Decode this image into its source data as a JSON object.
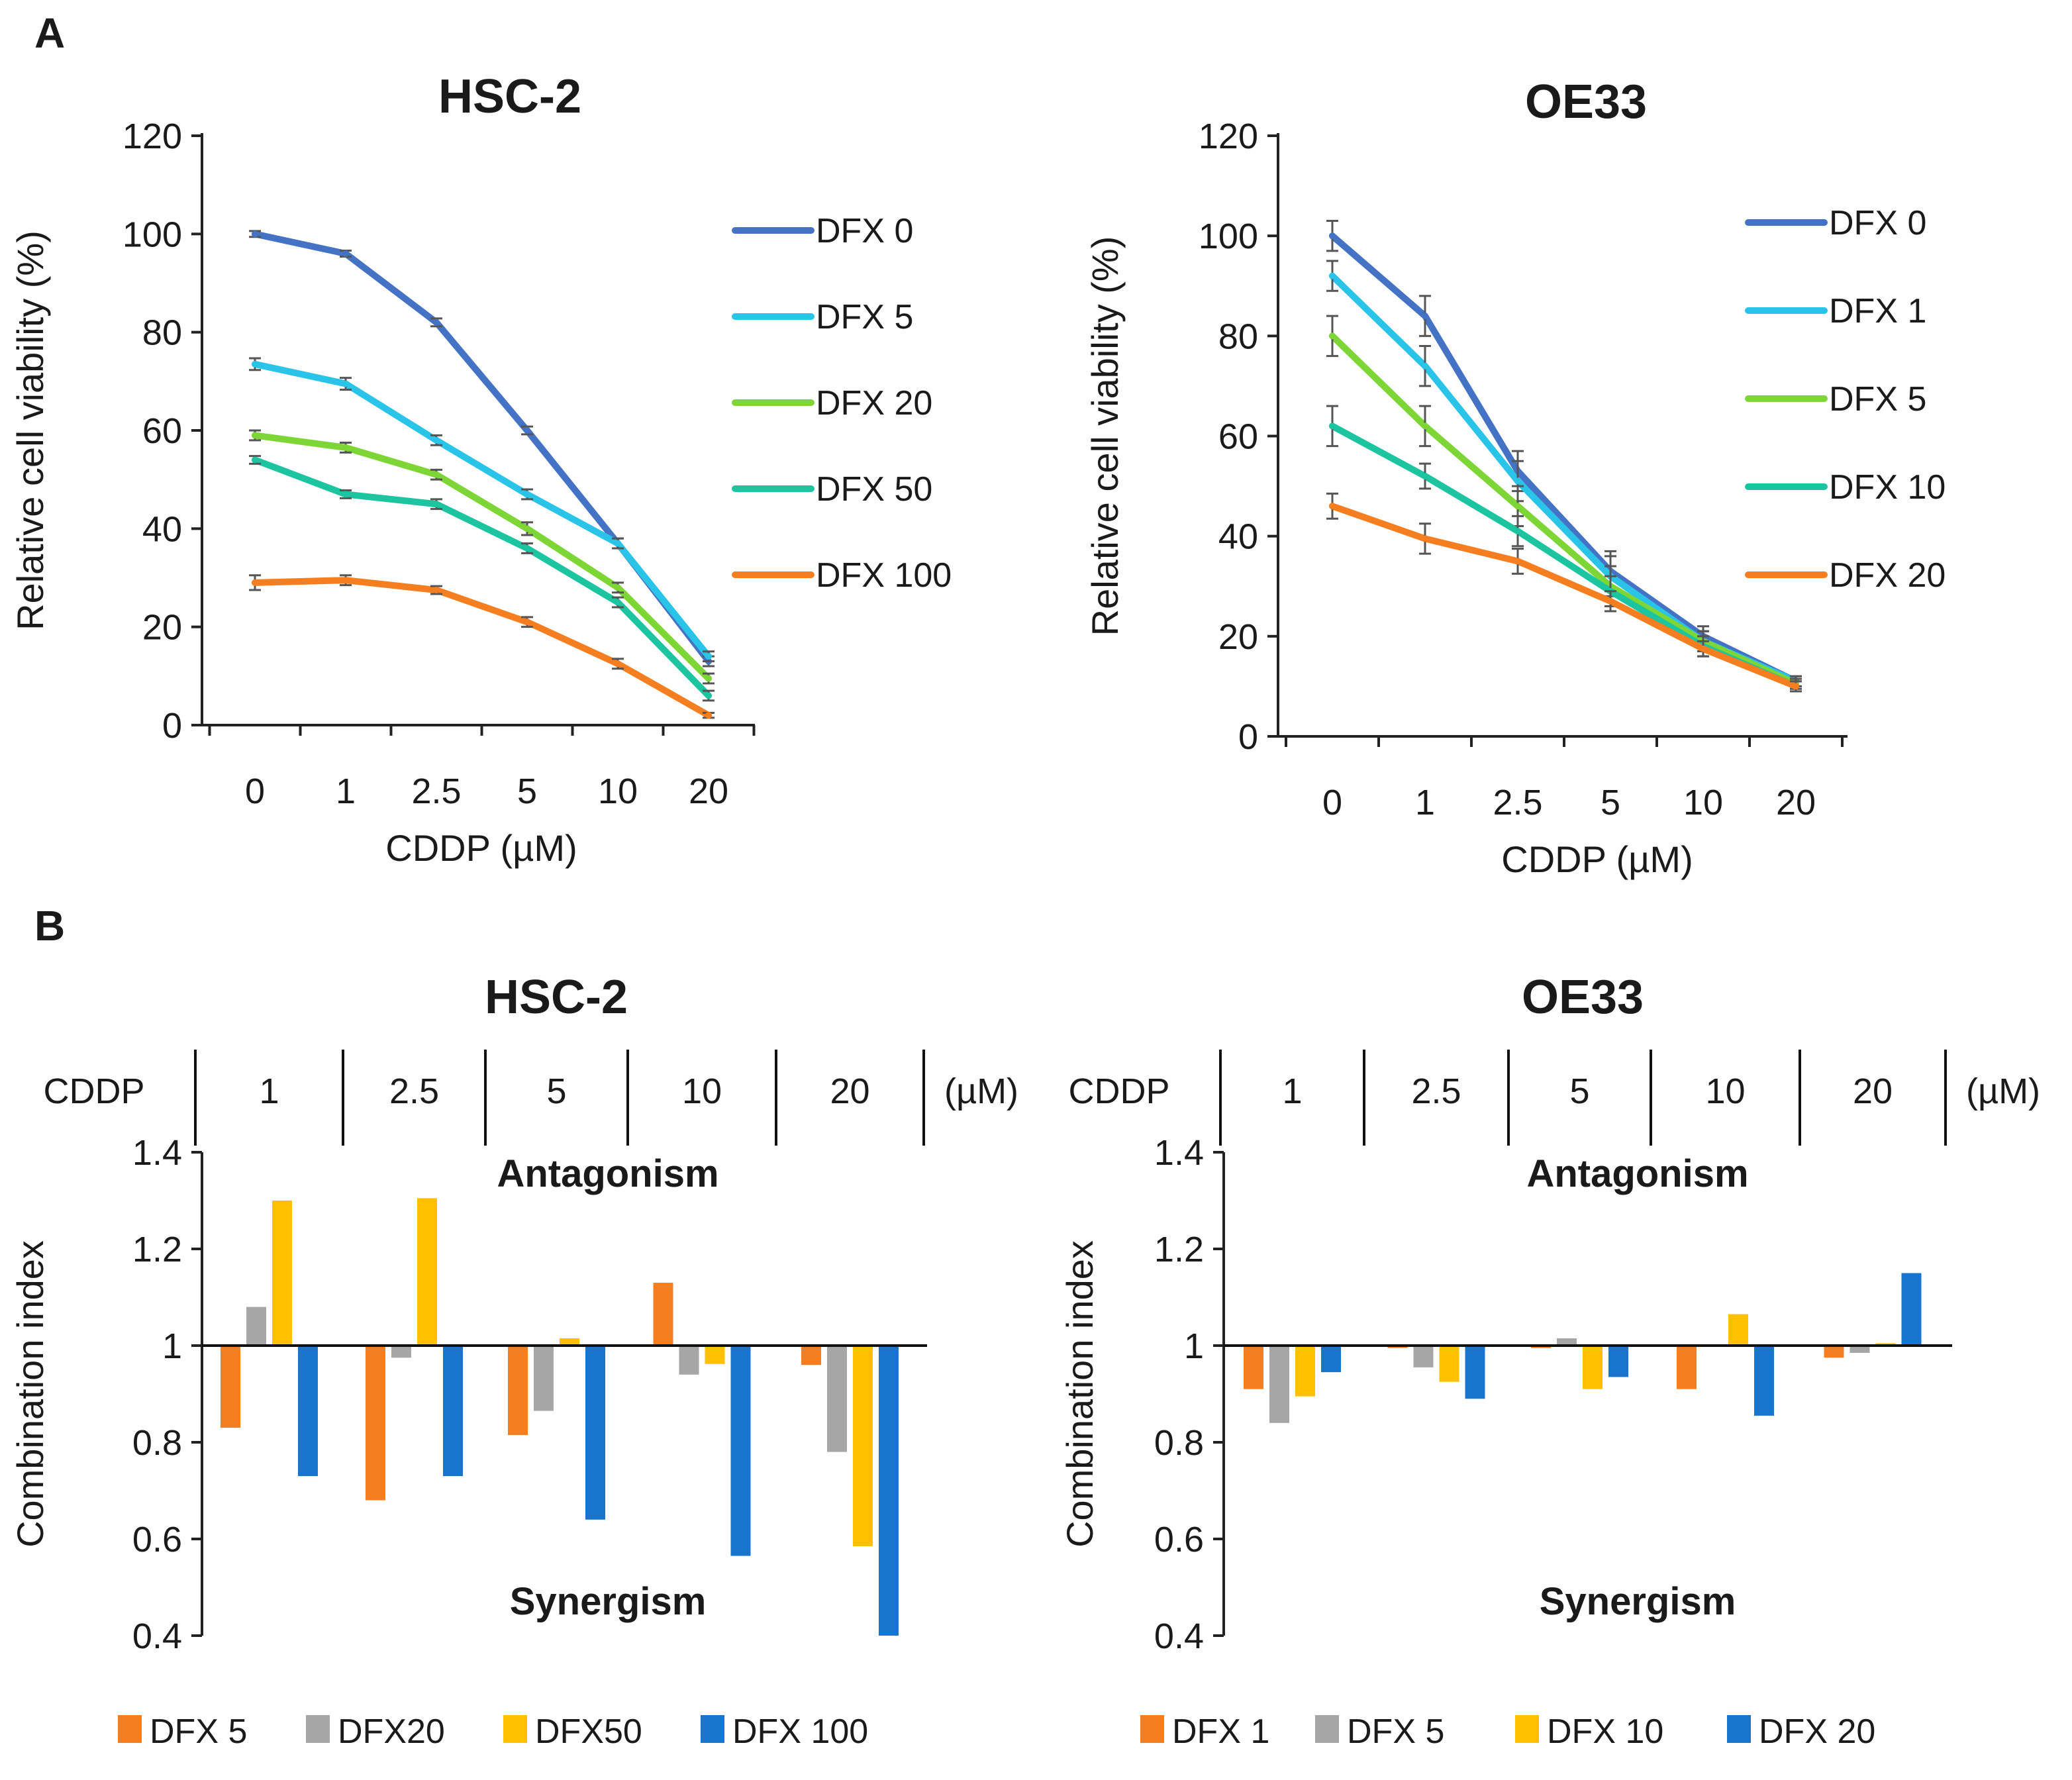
{
  "panels": {
    "A": "A",
    "B": "B"
  },
  "chart_data": [
    {
      "type": "line",
      "id": "A-HSC2",
      "title": "HSC-2",
      "xlabel": "CDDP (µM)",
      "ylabel": "Relative cell viability (%)",
      "categories": [
        "0",
        "1",
        "2.5",
        "5",
        "10",
        "20"
      ],
      "ylim": [
        0,
        120
      ],
      "yticks": [
        "0",
        "20",
        "40",
        "60",
        "80",
        "100",
        "120"
      ],
      "series": [
        {
          "name": "DFX 0",
          "color": "#4472C4",
          "values": [
            100,
            96,
            82,
            60,
            37,
            13
          ],
          "err": [
            0.6,
            0.6,
            0.8,
            0.8,
            1,
            1
          ]
        },
        {
          "name": "DFX 5",
          "color": "#29C4E8",
          "values": [
            73.5,
            69.5,
            58,
            47,
            37,
            14
          ],
          "err": [
            1.2,
            1.2,
            1,
            1,
            1,
            1
          ]
        },
        {
          "name": "DFX 20",
          "color": "#7ED636",
          "values": [
            59,
            56.5,
            51,
            40,
            28,
            9.5
          ],
          "err": [
            1,
            1,
            1,
            1.3,
            1,
            1
          ]
        },
        {
          "name": "DFX 50",
          "color": "#1CC4A0",
          "values": [
            54,
            47,
            45,
            36,
            25,
            6
          ],
          "err": [
            0.8,
            0.8,
            1,
            1,
            1,
            1
          ]
        },
        {
          "name": "DFX 100",
          "color": "#F57F20",
          "values": [
            29,
            29.5,
            27.5,
            21,
            12.5,
            2
          ],
          "err": [
            1.5,
            1,
            0.8,
            1,
            1,
            0.5
          ]
        }
      ]
    },
    {
      "type": "line",
      "id": "A-OE33",
      "title": "OE33",
      "xlabel": "CDDP (µM)",
      "ylabel": "Relative cell viability (%)",
      "categories": [
        "0",
        "1",
        "2.5",
        "5",
        "10",
        "20"
      ],
      "ylim": [
        0,
        120
      ],
      "yticks": [
        "0",
        "20",
        "40",
        "60",
        "80",
        "100",
        "120"
      ],
      "series": [
        {
          "name": "DFX 0",
          "color": "#4472C4",
          "values": [
            100,
            84,
            53,
            33,
            20,
            11
          ],
          "err": [
            3,
            4,
            4,
            4,
            2,
            1
          ]
        },
        {
          "name": "DFX 1",
          "color": "#29C4E8",
          "values": [
            92,
            74,
            51,
            32,
            19,
            11
          ],
          "err": [
            3,
            4,
            4,
            4,
            2,
            1
          ]
        },
        {
          "name": "DFX 5",
          "color": "#7ED636",
          "values": [
            80,
            62,
            46,
            30,
            19,
            10.5
          ],
          "err": [
            4,
            4,
            4,
            4,
            2,
            1
          ]
        },
        {
          "name": "DFX 10",
          "color": "#1CC4A0",
          "values": [
            62,
            52,
            41,
            29,
            18,
            10
          ],
          "err": [
            4,
            2.5,
            3,
            3,
            2,
            1
          ]
        },
        {
          "name": "DFX 20",
          "color": "#F57F20",
          "values": [
            46,
            39.5,
            35,
            27,
            17.5,
            10
          ],
          "err": [
            2.5,
            3,
            2.5,
            2,
            1.5,
            1
          ]
        }
      ]
    },
    {
      "type": "bar",
      "id": "B-HSC2",
      "title": "HSC-2",
      "ylabel": "Combination index",
      "header_label": "CDDP",
      "unit_label": "(µM)",
      "categories": [
        "1",
        "2.5",
        "5",
        "10",
        "20"
      ],
      "baseline": 1,
      "ylim": [
        0.4,
        1.4
      ],
      "yticks": [
        "0.4",
        "0.6",
        "0.8",
        "1",
        "1.2",
        "1.4"
      ],
      "antagonism_label": "Antagonism",
      "synergism_label": "Synergism",
      "series": [
        {
          "name": "DFX 5",
          "color": "#F57F20",
          "values": [
            0.83,
            0.68,
            0.815,
            1.13,
            0.96
          ]
        },
        {
          "name": "DFX20",
          "color": "#A6A6A6",
          "values": [
            1.08,
            0.975,
            0.865,
            0.94,
            0.78
          ]
        },
        {
          "name": "DFX50",
          "color": "#FFC000",
          "values": [
            1.3,
            1.305,
            1.015,
            0.962,
            0.585
          ]
        },
        {
          "name": "DFX 100",
          "color": "#1874CD",
          "values": [
            0.73,
            0.73,
            0.64,
            0.565,
            0.4
          ]
        }
      ]
    },
    {
      "type": "bar",
      "id": "B-OE33",
      "title": "OE33",
      "ylabel": "Combination index",
      "header_label": "CDDP",
      "unit_label": "(µM)",
      "categories": [
        "1",
        "2.5",
        "5",
        "10",
        "20"
      ],
      "baseline": 1,
      "ylim": [
        0.4,
        1.4
      ],
      "yticks": [
        "0.4",
        "0.6",
        "0.8",
        "1",
        "1.2",
        "1.4"
      ],
      "antagonism_label": "Antagonism",
      "synergism_label": "Synergism",
      "series": [
        {
          "name": "DFX 1",
          "color": "#F57F20",
          "values": [
            0.91,
            0.995,
            0.995,
            0.91,
            0.975
          ]
        },
        {
          "name": "DFX 5",
          "color": "#A6A6A6",
          "values": [
            0.84,
            0.955,
            1.015,
            1.0,
            0.985
          ]
        },
        {
          "name": "DFX 10",
          "color": "#FFC000",
          "values": [
            0.895,
            0.925,
            0.91,
            1.065,
            1.005
          ]
        },
        {
          "name": "DFX 20",
          "color": "#1874CD",
          "values": [
            0.945,
            0.89,
            0.935,
            0.855,
            1.15
          ]
        }
      ]
    }
  ]
}
